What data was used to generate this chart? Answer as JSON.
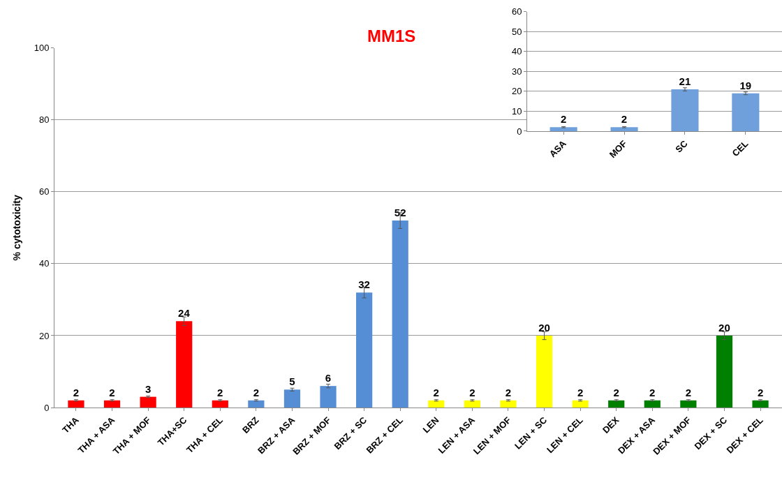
{
  "chart_data": [
    {
      "type": "bar",
      "title": "MM1S",
      "ylabel": "% cytotoxicity",
      "categories": [
        "THA",
        "THA + ASA",
        "THA + MOF",
        "THA+SC",
        "THA + CEL",
        "BRZ",
        "BRZ + ASA",
        "BRZ + MOF",
        "BRZ + SC",
        "BRZ + CEL",
        "LEN",
        "LEN + ASA",
        "LEN + MOF",
        "LEN + SC",
        "LEN + CEL",
        "DEX",
        "DEX + ASA",
        "DEX + MOF",
        "DEX + SC",
        "DEX + CEL"
      ],
      "values": [
        2,
        2,
        3,
        24,
        2,
        2,
        5,
        6,
        32,
        52,
        2,
        2,
        2,
        20,
        2,
        2,
        2,
        2,
        20,
        2
      ],
      "errors": [
        0.2,
        0.2,
        0.2,
        1.2,
        0.2,
        0.2,
        0.4,
        0.5,
        1.5,
        2.2,
        0.2,
        0.2,
        0.2,
        1.1,
        0.2,
        0.2,
        0.2,
        0.2,
        1.1,
        0.2
      ],
      "colors": [
        "#ff0000",
        "#ff0000",
        "#ff0000",
        "#ff0000",
        "#ff0000",
        "#558ed5",
        "#558ed5",
        "#558ed5",
        "#558ed5",
        "#558ed5",
        "#ffff00",
        "#ffff00",
        "#ffff00",
        "#ffff00",
        "#ffff00",
        "#008000",
        "#008000",
        "#008000",
        "#008000",
        "#008000"
      ],
      "ylim": [
        0,
        100
      ],
      "yticks": [
        0,
        20,
        40,
        60,
        80,
        100
      ],
      "grid": "y",
      "data_labels": true
    },
    {
      "type": "bar",
      "categories": [
        "ASA",
        "MOF",
        "SC",
        "CEL"
      ],
      "values": [
        2,
        2,
        21,
        19
      ],
      "errors": [
        0.3,
        0.3,
        0.8,
        0.7
      ],
      "colors": [
        "#6fa0dc",
        "#6fa0dc",
        "#6fa0dc",
        "#6fa0dc"
      ],
      "ylim": [
        0,
        60
      ],
      "yticks": [
        0,
        10,
        20,
        30,
        40,
        50,
        60
      ],
      "grid": "y",
      "data_labels": true
    }
  ]
}
